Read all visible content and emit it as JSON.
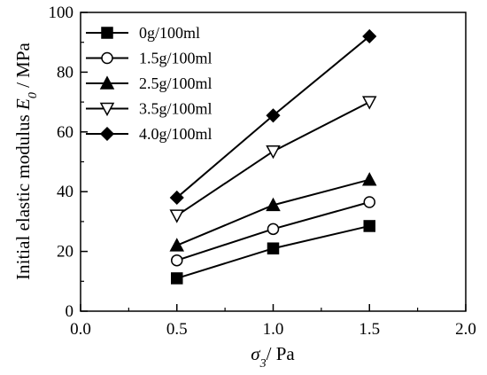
{
  "chart_data": {
    "type": "line",
    "xlabel": {
      "symbol": "σ",
      "subscript": "3",
      "rest": "/ Pa"
    },
    "ylabel": {
      "text": "Initial elastic modulus ",
      "symbol": "E",
      "subscript": "0",
      "rest": " / MPa"
    },
    "xlim": [
      0.0,
      2.0
    ],
    "ylim": [
      0,
      100
    ],
    "xticks": [
      "0.0",
      "0.5",
      "1.0",
      "1.5",
      "2.0"
    ],
    "yticks": [
      "0",
      "20",
      "40",
      "60",
      "80",
      "100"
    ],
    "x": [
      0.5,
      1.0,
      1.5
    ],
    "legend_position": "top-left",
    "grid": false,
    "series": [
      {
        "name": "0g/100ml",
        "marker": "square-filled",
        "values": [
          11,
          21,
          28.5
        ]
      },
      {
        "name": "1.5g/100ml",
        "marker": "circle-open",
        "values": [
          17,
          27.5,
          36.5
        ]
      },
      {
        "name": "2.5g/100ml",
        "marker": "triangle-up-filled",
        "values": [
          22,
          35.5,
          44
        ]
      },
      {
        "name": "3.5g/100ml",
        "marker": "triangle-down-open",
        "values": [
          32,
          53.5,
          70
        ]
      },
      {
        "name": "4.0g/100ml",
        "marker": "diamond-filled",
        "values": [
          38,
          65.5,
          92
        ]
      }
    ]
  }
}
